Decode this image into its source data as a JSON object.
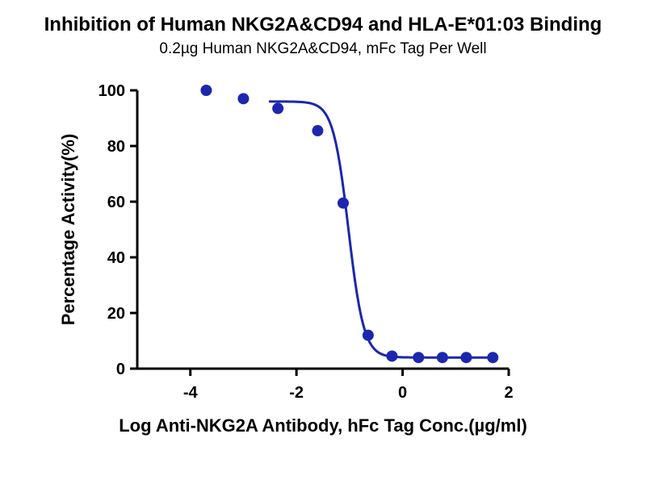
{
  "chart_data": {
    "type": "scatter",
    "title": "Inhibition of Human NKG2A&CD94 and HLA-E*01:03 Binding",
    "subtitle": "0.2µg Human NKG2A&CD94, mFc Tag Per Well",
    "xlabel": "Log Anti-NKG2A Antibody, hFc Tag Conc.(µg/ml)",
    "ylabel": "Percentage Activity(%)",
    "xlim": [
      -5,
      2
    ],
    "ylim": [
      0,
      100
    ],
    "x_ticks": [
      -4,
      -2,
      0,
      2
    ],
    "y_ticks": [
      0,
      20,
      40,
      60,
      80,
      100
    ],
    "grid": false,
    "legend": "none",
    "point_color": "#1c27ae",
    "line_color": "#1c27ae",
    "axis_color": "#000000",
    "points": [
      {
        "x": -3.7,
        "y": 100
      },
      {
        "x": -3.0,
        "y": 97
      },
      {
        "x": -2.35,
        "y": 93.5
      },
      {
        "x": -1.6,
        "y": 85.5
      },
      {
        "x": -1.12,
        "y": 59.5
      },
      {
        "x": -0.65,
        "y": 12
      },
      {
        "x": -0.2,
        "y": 4.5
      },
      {
        "x": 0.3,
        "y": 4
      },
      {
        "x": 0.75,
        "y": 4
      },
      {
        "x": 1.2,
        "y": 4
      },
      {
        "x": 1.7,
        "y": 4
      }
    ],
    "fit_curve": {
      "model": "4PL",
      "top": 96,
      "bottom": 4,
      "log_ic50": -1.02,
      "hill_slope": 3.0,
      "x_start": -2.5,
      "x_end": 1.75
    }
  }
}
